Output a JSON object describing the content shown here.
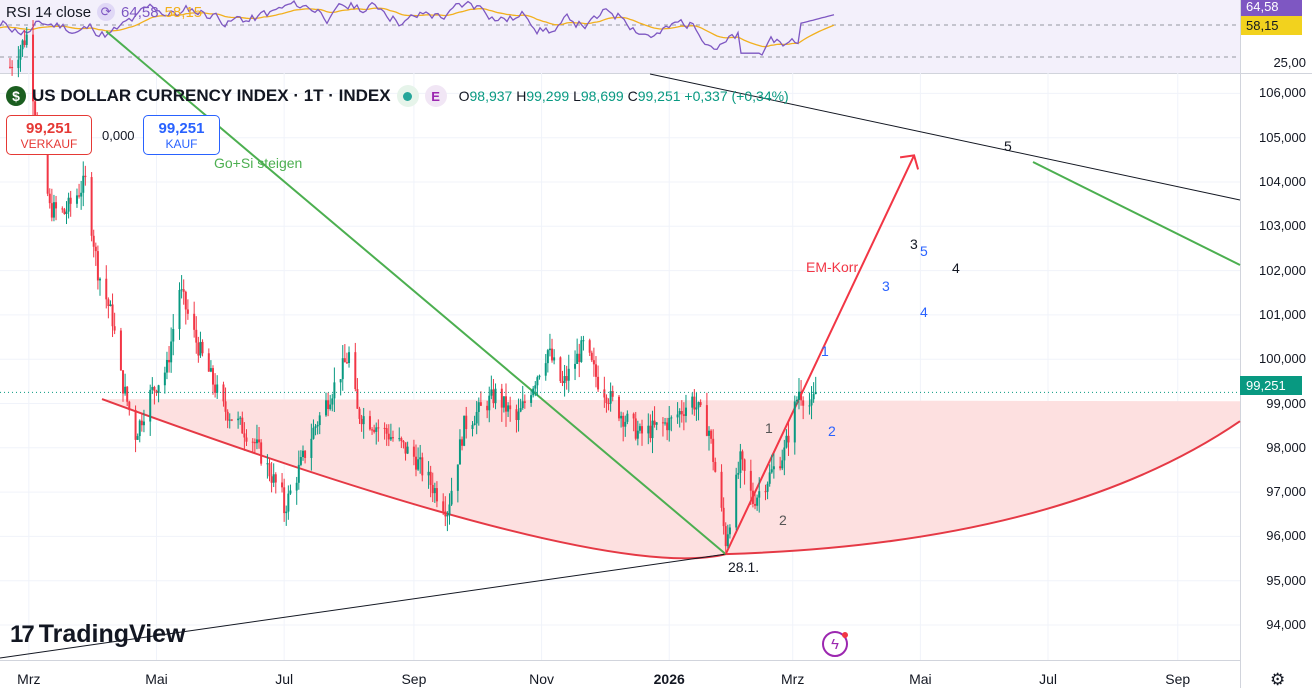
{
  "rsi": {
    "title": "RSI 14 close",
    "value": "64,58",
    "ma_value": "58,15",
    "axis_label": "25,00",
    "tag_value": "64,58",
    "tag_ma": "58,15",
    "colors": {
      "rsi": "#7e57c2",
      "ma": "#f2b01e",
      "pane": "#f3f0fb"
    }
  },
  "legend": {
    "symbol": "US DOLLAR CURRENCY INDEX · 1T · INDEX",
    "symbol_icon": "dollar-icon",
    "o_label": "O",
    "o_value": "98,937",
    "h_label": "H",
    "h_value": "99,299",
    "l_label": "L",
    "l_value": "98,699",
    "c_label": "C",
    "c_value": "99,251",
    "change": "+0,337 (+0,34%)",
    "e_badge": "E"
  },
  "trade": {
    "sell_price": "99,251",
    "sell_label": "VERKAUF",
    "spread": "0,000",
    "buy_price": "99,251",
    "buy_label": "KAUF"
  },
  "last_price": "99,251",
  "price_axis": [
    "106,000",
    "105,000",
    "104,000",
    "103,000",
    "102,000",
    "101,000",
    "100,000",
    "99,000",
    "98,000",
    "97,000",
    "96,000",
    "95,000",
    "94,000"
  ],
  "time_axis": [
    {
      "label": "Mrz",
      "bold": false
    },
    {
      "label": "Mai",
      "bold": false
    },
    {
      "label": "Jul",
      "bold": false
    },
    {
      "label": "Sep",
      "bold": false
    },
    {
      "label": "Nov",
      "bold": false
    },
    {
      "label": "2026",
      "bold": true
    },
    {
      "label": "Mrz",
      "bold": false
    },
    {
      "label": "Mai",
      "bold": false
    },
    {
      "label": "Jul",
      "bold": false
    },
    {
      "label": "Sep",
      "bold": false
    }
  ],
  "annotations": {
    "go_si": "Go+Si steigen",
    "em_korr": "EM-Korr.",
    "date_low": "28.1.",
    "wave_1_black": "1",
    "wave_2_black": "2",
    "wave_1_blue": "1",
    "wave_2_blue": "2",
    "wave_3_black": "3",
    "wave_5_blue": "5",
    "wave_3_blue": "3",
    "wave_4_blue": "4",
    "wave_4_black": "4",
    "wave_5_black": "5"
  },
  "branding": {
    "logo": "TradingView",
    "logo_mark": "17"
  },
  "colors": {
    "up": "#089981",
    "down": "#f23645",
    "bowl_fill": "#fde0e0",
    "bowl_line": "#e53945",
    "trend_green": "#4caf50",
    "arrow_red": "#f23645",
    "wave_blue": "#2962ff"
  },
  "chart_data": {
    "type": "candlestick",
    "title": "US DOLLAR CURRENCY INDEX · 1T · INDEX",
    "ylim": [
      93.6,
      106.6
    ],
    "x_range": [
      "2025-02-20",
      "2026-09-25"
    ],
    "grid": true,
    "ohlc_last": {
      "o": 98.937,
      "h": 99.299,
      "l": 98.699,
      "c": 99.251
    },
    "close_series": [
      {
        "date": "2025-02-20",
        "close": 106.6
      },
      {
        "date": "2025-02-28",
        "close": 107.3
      },
      {
        "date": "2025-03-04",
        "close": 105.6
      },
      {
        "date": "2025-03-11",
        "close": 103.4
      },
      {
        "date": "2025-03-18",
        "close": 103.3
      },
      {
        "date": "2025-03-28",
        "close": 104.0
      },
      {
        "date": "2025-04-03",
        "close": 102.0
      },
      {
        "date": "2025-04-10",
        "close": 100.9
      },
      {
        "date": "2025-04-14",
        "close": 99.6
      },
      {
        "date": "2025-04-21",
        "close": 98.3
      },
      {
        "date": "2025-04-28",
        "close": 99.2
      },
      {
        "date": "2025-05-06",
        "close": 99.8
      },
      {
        "date": "2025-05-12",
        "close": 101.6
      },
      {
        "date": "2025-05-20",
        "close": 100.4
      },
      {
        "date": "2025-06-02",
        "close": 98.9
      },
      {
        "date": "2025-06-16",
        "close": 98.2
      },
      {
        "date": "2025-06-30",
        "close": 96.9
      },
      {
        "date": "2025-07-01",
        "close": 96.6
      },
      {
        "date": "2025-07-15",
        "close": 98.4
      },
      {
        "date": "2025-08-01",
        "close": 100.1
      },
      {
        "date": "2025-08-05",
        "close": 98.8
      },
      {
        "date": "2025-08-20",
        "close": 98.3
      },
      {
        "date": "2025-09-01",
        "close": 97.8
      },
      {
        "date": "2025-09-17",
        "close": 96.6
      },
      {
        "date": "2025-09-25",
        "close": 98.5
      },
      {
        "date": "2025-10-10",
        "close": 99.2
      },
      {
        "date": "2025-10-20",
        "close": 98.6
      },
      {
        "date": "2025-11-04",
        "close": 100.2
      },
      {
        "date": "2025-11-11",
        "close": 99.4
      },
      {
        "date": "2025-11-21",
        "close": 100.3
      },
      {
        "date": "2025-11-28",
        "close": 99.5
      },
      {
        "date": "2025-12-10",
        "close": 98.7
      },
      {
        "date": "2025-12-18",
        "close": 98.3
      },
      {
        "date": "2026-01-02",
        "close": 98.6
      },
      {
        "date": "2026-01-12",
        "close": 99.1
      },
      {
        "date": "2026-01-20",
        "close": 98.4
      },
      {
        "date": "2026-01-28",
        "close": 95.9
      },
      {
        "date": "2026-02-04",
        "close": 97.7
      },
      {
        "date": "2026-02-10",
        "close": 96.8
      },
      {
        "date": "2026-02-17",
        "close": 97.3
      },
      {
        "date": "2026-02-25",
        "close": 97.9
      },
      {
        "date": "2026-03-04",
        "close": 99.3
      },
      {
        "date": "2026-03-10",
        "close": 98.9
      },
      {
        "date": "2026-03-12",
        "close": 99.251
      }
    ],
    "drawings": {
      "arrow_target": {
        "date": "2026-04-28",
        "price": 104.6
      },
      "bowl_low": {
        "date": "2026-01-28",
        "price": 95.6
      },
      "green_trendline": [
        {
          "date": "2025-04-07",
          "price": 107.4
        },
        {
          "date": "2026-01-28",
          "price": 95.6
        }
      ],
      "green_trendline_2": [
        {
          "date": "2026-06-10",
          "price": 104.4
        },
        {
          "date": "2026-09-25",
          "price": 102.0
        }
      ]
    },
    "rsi": {
      "value": 64.58,
      "ma": 58.15
    }
  }
}
